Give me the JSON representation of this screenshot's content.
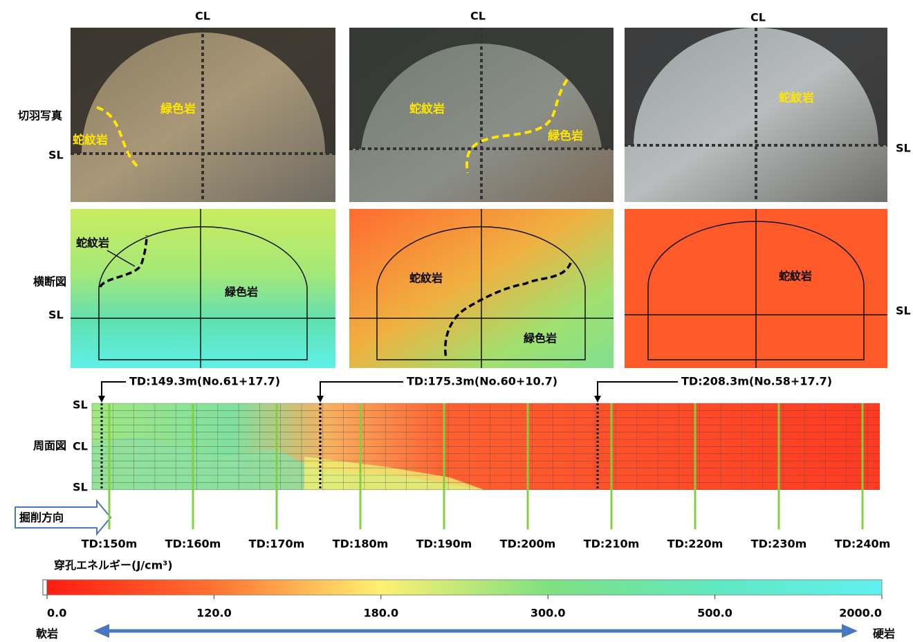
{
  "columns": [
    {
      "cl": "CL",
      "photo_labels": [
        "緑色岩",
        "蛇紋岩"
      ],
      "section_labels": [
        "蛇紋岩",
        "緑色岩"
      ],
      "callout": "TD:149.3m(No.61+17.7)"
    },
    {
      "cl": "CL",
      "photo_labels": [
        "蛇紋岩",
        "緑色岩"
      ],
      "section_labels": [
        "蛇紋岩",
        "緑色岩"
      ],
      "callout": "TD:175.3m(No.60+10.7)"
    },
    {
      "cl": "CL",
      "photo_labels": [
        "蛇紋岩"
      ],
      "section_labels": [
        "蛇紋岩"
      ],
      "callout": "TD:208.3m(No.58+17.7)"
    }
  ],
  "row_labels": {
    "photo": "切羽写真",
    "section": "横断図",
    "perimeter": "周面図"
  },
  "sl_labels": {
    "photo_left": "SL",
    "photo_right": "SL",
    "section_left": "SL",
    "section_right": "SL"
  },
  "perimeter_labels": [
    "SL",
    "CL",
    "SL"
  ],
  "direction": "掘削方向",
  "td_ticks": [
    "TD:150m",
    "TD:160m",
    "TD:170m",
    "TD:180m",
    "TD:190m",
    "TD:200m",
    "TD:210m",
    "TD:220m",
    "TD:230m",
    "TD:240m"
  ],
  "colorbar": {
    "title": "穿孔エネルギー(J/cm³)",
    "labels": [
      "0.0",
      "120.0",
      "180.0",
      "300.0",
      "500.0",
      "2000.0"
    ]
  },
  "scale_ends": {
    "soft": "軟岩",
    "hard": "硬岩"
  }
}
